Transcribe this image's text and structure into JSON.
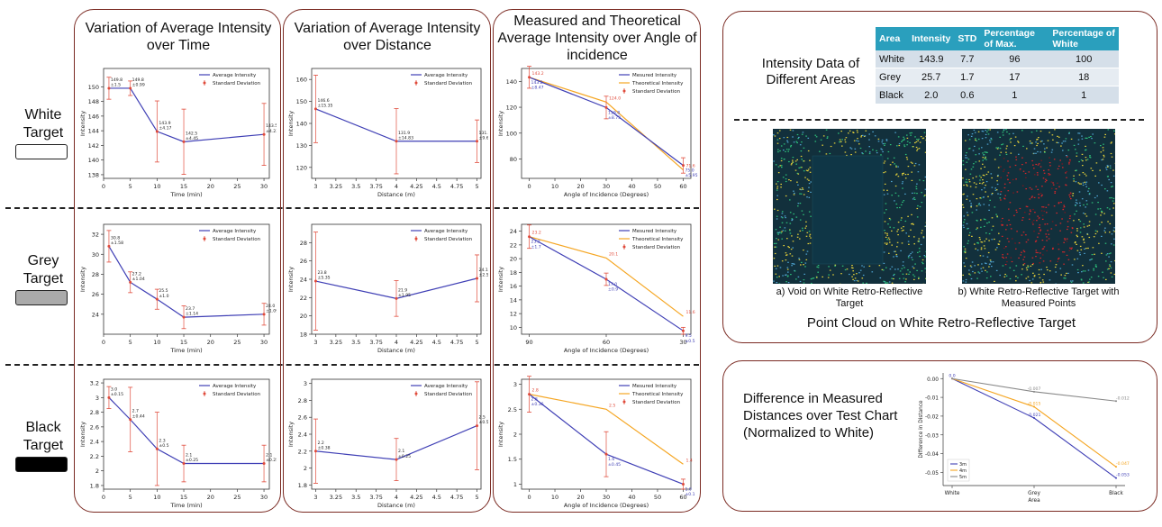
{
  "row_labels": [
    {
      "line1": "White",
      "line2": "Target",
      "swatch": "#ffffff"
    },
    {
      "line1": "Grey",
      "line2": "Target",
      "swatch": "#aaaaaa"
    },
    {
      "line1": "Black",
      "line2": "Target",
      "swatch": "#000000"
    }
  ],
  "columns": [
    {
      "title": "Variation of Average Intensity over Time"
    },
    {
      "title": "Variation of Average Intensity over Distance"
    },
    {
      "title": "Measured and Theoretical Average Intensity over Angle of incidence"
    }
  ],
  "table": {
    "title": "Intensity Data of Different Areas",
    "headers": [
      "Area",
      "Intensity",
      "STD",
      "Percentage of Max.",
      "Percentage of White"
    ],
    "rows": [
      [
        "White",
        "143.9",
        "7.7",
        "96",
        "100"
      ],
      [
        "Grey",
        "25.7",
        "1.7",
        "17",
        "18"
      ],
      [
        "Black",
        "2.0",
        "0.6",
        "1",
        "1"
      ]
    ]
  },
  "point_cloud": {
    "caption_a": "a) Void on White Retro-Reflective Target",
    "caption_b": "b) White Retro-Reflective Target with Measured Points",
    "title": "Point Cloud on White Retro-Reflective Target"
  },
  "difference_chart_title": "Difference in Measured Distances over Test Chart (Normalized to White)",
  "colors": {
    "blue": "#3f3fb5",
    "orange": "#f5a623",
    "red": "#e04a3a",
    "grey": "#888888",
    "panel_border": "#7a2a22"
  },
  "chart_data": [
    {
      "id": "time_white",
      "type": "line",
      "title": "",
      "xlabel": "Time (min)",
      "ylabel": "Intensity",
      "x": [
        1,
        5,
        10,
        15,
        30
      ],
      "values": [
        149.8,
        149.8,
        143.9,
        142.5,
        143.5
      ],
      "errors": [
        1.5,
        0.99,
        4.17,
        4.45,
        4.23
      ],
      "labels": [
        "149.8\n±1.5",
        "149.8\n±0.99",
        "143.9\n±4.17",
        "142.5\n±4.45",
        "143.5\n±4.23"
      ],
      "xlim": [
        0,
        31
      ],
      "ylim": [
        137.5,
        152.5
      ],
      "xticks": [
        0,
        5,
        10,
        15,
        20,
        25,
        30
      ],
      "yticks": [
        138,
        140,
        142,
        144,
        146,
        148,
        150
      ],
      "legend": [
        "Average Intensity",
        "Standard Deviation"
      ]
    },
    {
      "id": "dist_white",
      "type": "line",
      "xlabel": "Distance (m)",
      "ylabel": "Intensity",
      "x": [
        3,
        4,
        5
      ],
      "values": [
        146.6,
        131.9,
        131.9
      ],
      "errors": [
        15.35,
        14.83,
        9.68
      ],
      "labels": [
        "146.6\n±15.35",
        "131.9\n±14.83",
        "131.9\n±9.68"
      ],
      "xlim": [
        2.95,
        5.05
      ],
      "ylim": [
        115,
        165
      ],
      "xticks": [
        3.0,
        3.25,
        3.5,
        3.75,
        4.0,
        4.25,
        4.5,
        4.75,
        5.0
      ],
      "yticks": [
        120,
        130,
        140,
        150,
        160
      ],
      "legend": [
        "Average Intensity",
        "Standard Deviation"
      ]
    },
    {
      "id": "angle_white",
      "type": "line",
      "xlabel": "Angle of Incidence (Degrees)",
      "ylabel": "Intensity",
      "x": [
        0,
        30,
        60
      ],
      "series": [
        {
          "name": "Mesured Intensity",
          "values": [
            143.2,
            119.8,
            75.0
          ],
          "errors": [
            8.47,
            8.73,
            5.95
          ]
        },
        {
          "name": "Theoretical Intensity",
          "values": [
            143.2,
            124.0,
            71.6
          ]
        }
      ],
      "labels_meas": [
        "143.2\n±8.47",
        "119.8\n±8.73",
        "75.0\n±5.95"
      ],
      "labels_theo": [
        "143.2",
        "124.0",
        "71.6"
      ],
      "xlim": [
        -3,
        63
      ],
      "ylim": [
        65,
        150
      ],
      "xticks": [
        0,
        10,
        20,
        30,
        40,
        50,
        60
      ],
      "yticks": [
        80,
        100,
        120,
        140
      ],
      "legend": [
        "Mesured Intensity",
        "Theoretical Intensity",
        "Standard Deviation"
      ]
    },
    {
      "id": "time_grey",
      "type": "line",
      "xlabel": "Time (min)",
      "ylabel": "Intensity",
      "x": [
        1,
        5,
        10,
        15,
        30
      ],
      "values": [
        30.8,
        27.2,
        25.5,
        23.7,
        24.0
      ],
      "errors": [
        1.58,
        1.04,
        1.0,
        1.14,
        1.09
      ],
      "labels": [
        "30.8\n±1.58",
        "27.2\n±1.04",
        "25.5\n±1.0",
        "23.7\n±1.14",
        "24.0\n±1.09"
      ],
      "xlim": [
        0,
        31
      ],
      "ylim": [
        22,
        33
      ],
      "xticks": [
        0,
        5,
        10,
        15,
        20,
        25,
        30
      ],
      "yticks": [
        24,
        26,
        28,
        30,
        32
      ],
      "legend": [
        "Average Intensity",
        "Standard Deviation"
      ]
    },
    {
      "id": "dist_grey",
      "type": "line",
      "xlabel": "Distance (m)",
      "ylabel": "Intensity",
      "x": [
        3,
        4,
        5
      ],
      "values": [
        23.8,
        21.9,
        24.1
      ],
      "errors": [
        5.35,
        1.95,
        2.56
      ],
      "labels": [
        "23.8\n±5.35",
        "21.9\n±1.95",
        "24.1\n±2.56"
      ],
      "xlim": [
        2.95,
        5.05
      ],
      "ylim": [
        18,
        30
      ],
      "xticks": [
        3.0,
        3.25,
        3.5,
        3.75,
        4.0,
        4.25,
        4.5,
        4.75,
        5.0
      ],
      "yticks": [
        18,
        20,
        22,
        24,
        26,
        28
      ],
      "legend": [
        "Average Intensity",
        "Standard Deviation"
      ]
    },
    {
      "id": "angle_grey",
      "type": "line",
      "xlabel": "Angle of Incidence (Degrees)",
      "ylabel": "Intensity",
      "x": [
        90,
        60,
        30
      ],
      "series": [
        {
          "name": "Mesured Intensity",
          "values": [
            23.2,
            17.0,
            9.5
          ],
          "errors": [
            1.7,
            0.9,
            0.5
          ]
        },
        {
          "name": "Theoretical Intensity",
          "values": [
            23.2,
            20.1,
            11.6
          ]
        }
      ],
      "labels_meas": [
        "23.2\n±1.7",
        "17.0\n±0.9",
        "9.5\n±0.5"
      ],
      "labels_theo": [
        "23.2",
        "20.1",
        "11.6"
      ],
      "xlim": [
        93,
        27
      ],
      "ylim": [
        9,
        25
      ],
      "xticks": [
        90,
        60,
        30
      ],
      "yticks": [
        10,
        12,
        14,
        16,
        18,
        20,
        22,
        24
      ],
      "legend": [
        "Mesured Intensity",
        "Theoretical Intensity",
        "Standard Deviation"
      ]
    },
    {
      "id": "time_black",
      "type": "line",
      "xlabel": "Time (min)",
      "ylabel": "Intensity",
      "x": [
        1,
        5,
        10,
        15,
        30
      ],
      "values": [
        3.0,
        2.7,
        2.3,
        2.1,
        2.1
      ],
      "errors": [
        0.15,
        0.44,
        0.5,
        0.25,
        0.25
      ],
      "labels": [
        "3.0\n±0.15",
        "2.7\n±0.44",
        "2.3\n±0.5",
        "2.1\n±0.25",
        "2.1\n±0.25"
      ],
      "xlim": [
        0,
        31
      ],
      "ylim": [
        1.75,
        3.25
      ],
      "xticks": [
        0,
        5,
        10,
        15,
        20,
        25,
        30
      ],
      "yticks": [
        1.8,
        2.0,
        2.2,
        2.4,
        2.6,
        2.8,
        3.0,
        3.2
      ],
      "legend": [
        "Average Intensity",
        "Standard Deviation"
      ]
    },
    {
      "id": "dist_black",
      "type": "line",
      "xlabel": "Distance (m)",
      "ylabel": "Intensity",
      "x": [
        3,
        4,
        5
      ],
      "values": [
        2.2,
        2.1,
        2.5
      ],
      "errors": [
        0.38,
        0.25,
        0.52
      ],
      "labels": [
        "2.2\n±0.38",
        "2.1\n±0.25",
        "2.5\n±0.52"
      ],
      "xlim": [
        2.95,
        5.05
      ],
      "ylim": [
        1.75,
        3.05
      ],
      "xticks": [
        3.0,
        3.25,
        3.5,
        3.75,
        4.0,
        4.25,
        4.5,
        4.75,
        5.0
      ],
      "yticks": [
        1.8,
        2.0,
        2.2,
        2.4,
        2.6,
        2.8,
        3.0
      ],
      "legend": [
        "Average Intensity",
        "Standard Deviation"
      ]
    },
    {
      "id": "angle_black",
      "type": "line",
      "xlabel": "Angle of Incidence (Degrees)",
      "ylabel": "Intensity",
      "x": [
        0,
        30,
        60
      ],
      "series": [
        {
          "name": "Mesured Intensity",
          "values": [
            2.8,
            1.6,
            1.0
          ],
          "errors": [
            0.36,
            0.45,
            0.1
          ]
        },
        {
          "name": "Theoretical Intensity",
          "values": [
            2.8,
            2.5,
            1.4
          ]
        }
      ],
      "labels_meas": [
        "2.8\n±0.36",
        "1.6\n±0.45",
        "1.0\n±0.1"
      ],
      "labels_theo": [
        "2.8",
        "2.5",
        "1.4"
      ],
      "xlim": [
        -3,
        63
      ],
      "ylim": [
        0.9,
        3.1
      ],
      "xticks": [
        0,
        10,
        20,
        30,
        40,
        50,
        60
      ],
      "yticks": [
        1.0,
        1.5,
        2.0,
        2.5,
        3.0
      ],
      "legend": [
        "Mesured Intensity",
        "Theoretical Intensity",
        "Standard Deviation"
      ]
    },
    {
      "id": "distance_difference",
      "type": "line",
      "xlabel": "Area",
      "ylabel": "Difference in Distance",
      "categories": [
        "White",
        "Grey",
        "Black"
      ],
      "series": [
        {
          "name": "3m",
          "values": [
            0.0,
            -0.021,
            -0.053
          ]
        },
        {
          "name": "4m",
          "values": [
            0.0,
            -0.015,
            -0.047
          ]
        },
        {
          "name": "5m",
          "values": [
            0.0,
            -0.007,
            -0.012
          ]
        }
      ],
      "labels": {
        "3m": [
          "0.0",
          "-0.021",
          "-0.053"
        ],
        "4m": [
          "",
          "-0.015",
          "-0.047"
        ],
        "5m": [
          "",
          "-0.007",
          "-0.012"
        ]
      },
      "ylim": [
        -0.057,
        0.003
      ],
      "yticks": [
        0.0,
        -0.01,
        -0.02,
        -0.03,
        -0.04,
        -0.05
      ],
      "legend": [
        "3m",
        "4m",
        "5m"
      ]
    }
  ]
}
